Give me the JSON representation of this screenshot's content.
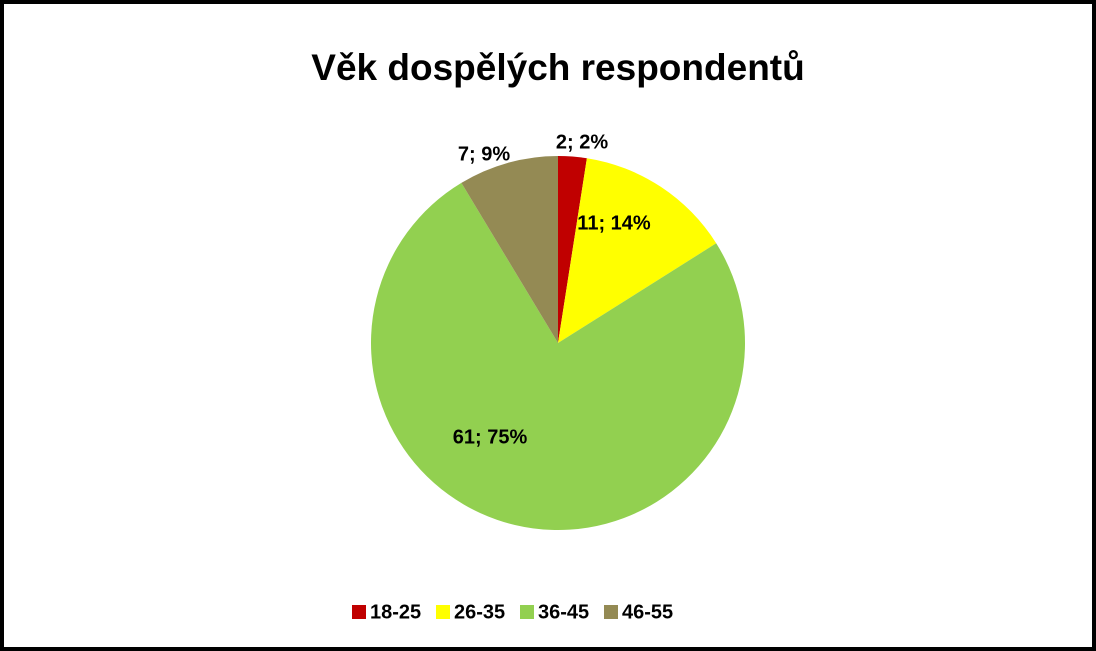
{
  "chart_data": {
    "type": "pie",
    "title": "Věk dospělých respondentů",
    "categories": [
      "18-25",
      "26-35",
      "36-45",
      "46-55"
    ],
    "values": [
      2,
      11,
      61,
      7
    ],
    "value_labels": [
      "2; 2%",
      "11; 14%",
      "61; 75%",
      "7; 9%"
    ],
    "colors": [
      "#c00000",
      "#ffff00",
      "#92d050",
      "#948a54"
    ],
    "legend": "bottom"
  }
}
